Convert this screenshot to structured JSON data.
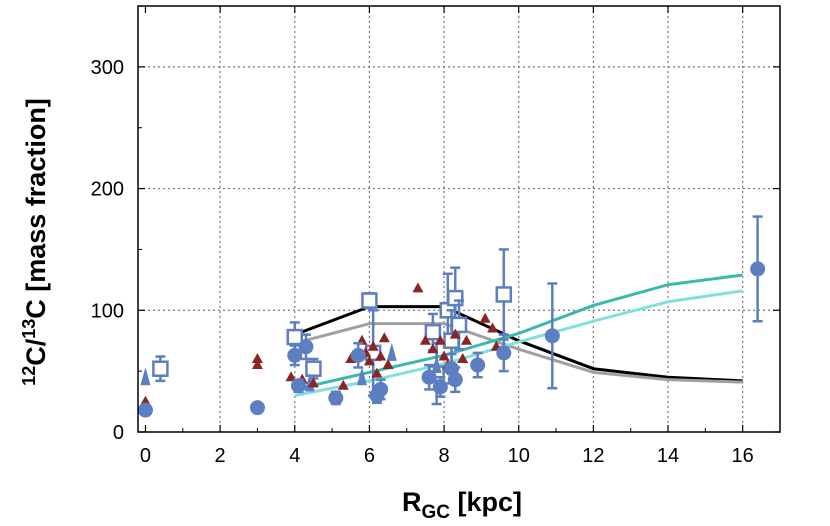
{
  "chart_data": {
    "type": "scatter",
    "xlabel_main": "R",
    "xlabel_sub": "GC",
    "xlabel_unit": " [kpc]",
    "ylabel_sup1": "12",
    "ylabel_part1": "C/",
    "ylabel_sup2": "13",
    "ylabel_part2": "C [mass fraction]",
    "xlim": [
      -0.2,
      17
    ],
    "ylim": [
      0,
      350
    ],
    "x_ticks": [
      0,
      2,
      4,
      6,
      8,
      10,
      12,
      14,
      16
    ],
    "y_ticks": [
      0,
      100,
      200,
      300
    ],
    "grid": true,
    "colors": {
      "circles": "#5b7fc0",
      "squares": "#5b7fc0",
      "triangles_up": "#8b2525",
      "triangles_blue": "#5b7fc0",
      "model_black": "#000000",
      "model_gray": "#a0a0a0",
      "model_teal": "#3bb8b0",
      "model_lightcyan": "#80e0dc"
    },
    "series": [
      {
        "marker": "circle-errorbar",
        "points": [
          {
            "x": 0.0,
            "y": 18
          },
          {
            "x": 3.0,
            "y": 20
          },
          {
            "x": 4.0,
            "y": 63,
            "err": 8
          },
          {
            "x": 4.1,
            "y": 38,
            "err": 5
          },
          {
            "x": 4.3,
            "y": 70,
            "err": 10
          },
          {
            "x": 5.1,
            "y": 28,
            "err": 5
          },
          {
            "x": 5.7,
            "y": 63,
            "err": 10
          },
          {
            "x": 6.2,
            "y": 30,
            "err": 6
          },
          {
            "x": 6.3,
            "y": 35,
            "err": 8
          },
          {
            "x": 7.6,
            "y": 45,
            "err": 10
          },
          {
            "x": 7.9,
            "y": 37,
            "err": 8
          },
          {
            "x": 8.2,
            "y": 52,
            "err": 12
          },
          {
            "x": 8.3,
            "y": 43,
            "err": 10
          },
          {
            "x": 8.9,
            "y": 55,
            "err": 10
          },
          {
            "x": 9.6,
            "y": 65,
            "err": 15
          },
          {
            "x": 10.9,
            "y": 79,
            "err": 43
          },
          {
            "x": 16.4,
            "y": 134,
            "err": 43
          }
        ]
      },
      {
        "marker": "open-square-errorbar",
        "points": [
          {
            "x": 0.4,
            "y": 52,
            "err": 10
          },
          {
            "x": 4.0,
            "y": 78,
            "err": 12
          },
          {
            "x": 4.5,
            "y": 52,
            "err": 8
          },
          {
            "x": 6.0,
            "y": 108,
            "err": 6
          },
          {
            "x": 6.1,
            "y": 65,
            "err": 35
          },
          {
            "x": 7.7,
            "y": 82,
            "err": 15
          },
          {
            "x": 7.8,
            "y": 48,
            "err": 25
          },
          {
            "x": 8.1,
            "y": 100,
            "err": 30
          },
          {
            "x": 8.2,
            "y": 75,
            "err": 25
          },
          {
            "x": 8.3,
            "y": 110,
            "err": 25
          },
          {
            "x": 8.4,
            "y": 88,
            "err": 20
          },
          {
            "x": 9.6,
            "y": 113,
            "err": 37
          }
        ]
      },
      {
        "marker": "filled-triangle-up",
        "points": [
          {
            "x": 0.0,
            "y": 25
          },
          {
            "x": 3.0,
            "y": 60
          },
          {
            "x": 3.0,
            "y": 55
          },
          {
            "x": 3.9,
            "y": 45
          },
          {
            "x": 4.2,
            "y": 43
          },
          {
            "x": 4.5,
            "y": 40
          },
          {
            "x": 5.3,
            "y": 38
          },
          {
            "x": 5.5,
            "y": 60
          },
          {
            "x": 5.8,
            "y": 75
          },
          {
            "x": 5.9,
            "y": 65
          },
          {
            "x": 6.0,
            "y": 58
          },
          {
            "x": 6.1,
            "y": 70
          },
          {
            "x": 6.3,
            "y": 62
          },
          {
            "x": 6.4,
            "y": 77
          },
          {
            "x": 6.2,
            "y": 48
          },
          {
            "x": 6.5,
            "y": 55
          },
          {
            "x": 7.3,
            "y": 118
          },
          {
            "x": 7.5,
            "y": 75
          },
          {
            "x": 7.7,
            "y": 68
          },
          {
            "x": 7.9,
            "y": 75
          },
          {
            "x": 8.0,
            "y": 62
          },
          {
            "x": 8.1,
            "y": 55
          },
          {
            "x": 8.3,
            "y": 80
          },
          {
            "x": 8.5,
            "y": 60
          },
          {
            "x": 8.6,
            "y": 75
          },
          {
            "x": 9.1,
            "y": 93
          },
          {
            "x": 9.3,
            "y": 85
          },
          {
            "x": 9.4,
            "y": 70
          }
        ]
      },
      {
        "marker": "triangle-blue",
        "points": [
          {
            "x": 0.0,
            "y": 45
          },
          {
            "x": 4.4,
            "y": 40
          },
          {
            "x": 5.8,
            "y": 45
          },
          {
            "x": 6.6,
            "y": 65
          },
          {
            "x": 7.8,
            "y": 55
          }
        ]
      },
      {
        "marker": "line-black",
        "x": [
          4,
          6,
          8,
          10,
          12,
          14,
          16
        ],
        "y": [
          80,
          103,
          103,
          75,
          52,
          45,
          42
        ]
      },
      {
        "marker": "line-gray",
        "x": [
          4,
          6,
          8,
          10,
          12,
          14,
          16
        ],
        "y": [
          73,
          89,
          89,
          68,
          49,
          43,
          41
        ]
      },
      {
        "marker": "line-teal",
        "x": [
          4,
          6,
          8,
          10,
          12,
          14,
          16
        ],
        "y": [
          35,
          49,
          63,
          81,
          104,
          121,
          129
        ]
      },
      {
        "marker": "line-lightcyan",
        "x": [
          4,
          6,
          8,
          10,
          12,
          14,
          16
        ],
        "y": [
          30,
          42,
          56,
          74,
          91,
          107,
          116
        ]
      }
    ]
  }
}
